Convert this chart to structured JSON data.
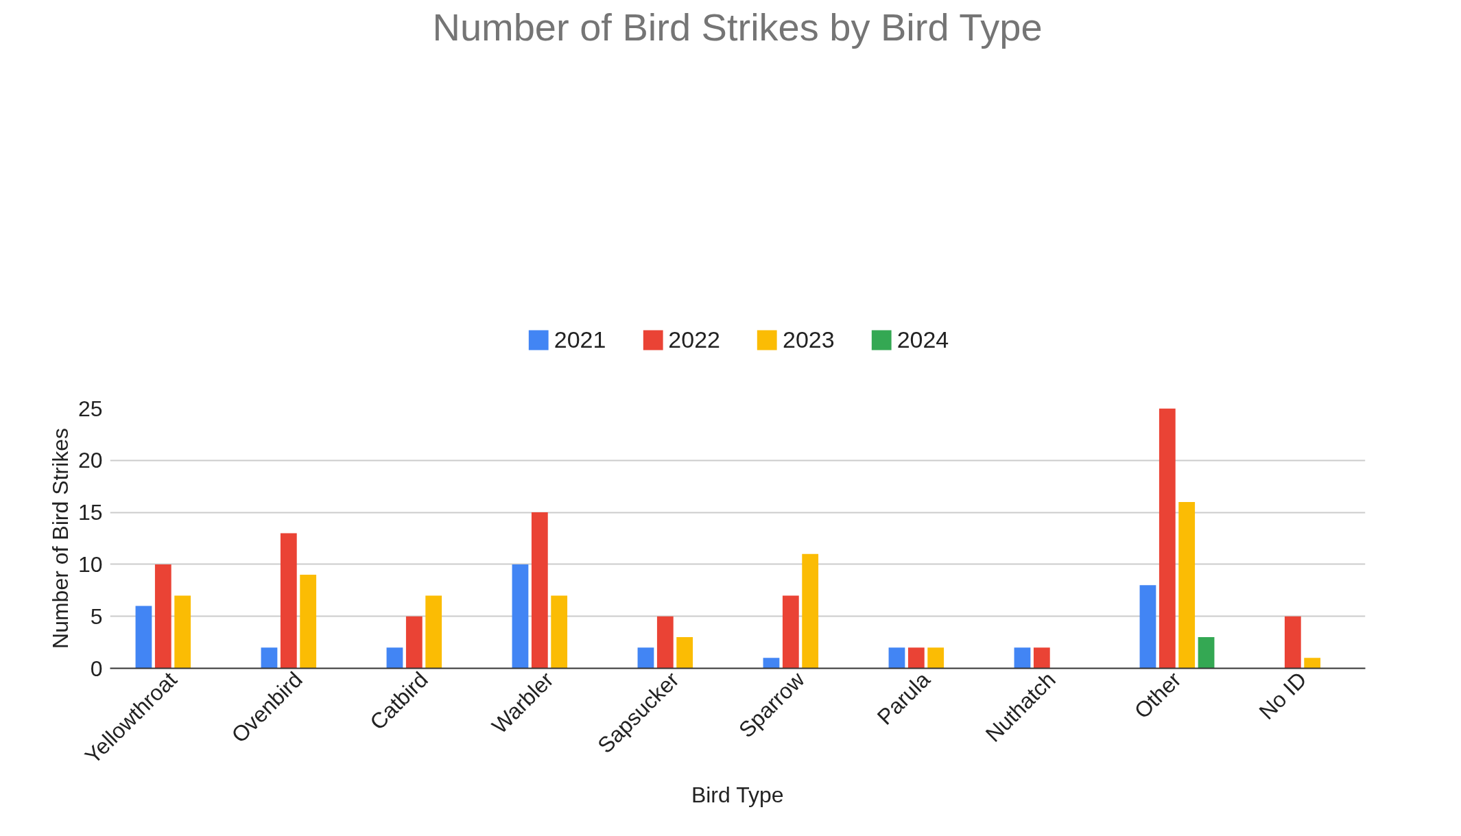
{
  "chart_data": {
    "type": "bar",
    "title": "Number of Bird Strikes by Bird Type",
    "xlabel": "Bird Type",
    "ylabel": "Number of Bird Strikes",
    "categories": [
      "Yellowthroat",
      "Ovenbird",
      "Catbird",
      "Warbler",
      "Sapsucker",
      "Sparrow",
      "Parula",
      "Nuthatch",
      "Other",
      "No ID"
    ],
    "series": [
      {
        "name": "2021",
        "color": "#4285f4",
        "values": [
          6,
          2,
          2,
          10,
          2,
          1,
          2,
          2,
          8,
          null
        ]
      },
      {
        "name": "2022",
        "color": "#ea4335",
        "values": [
          10,
          13,
          5,
          15,
          5,
          7,
          2,
          2,
          25,
          5
        ]
      },
      {
        "name": "2023",
        "color": "#fbbc04",
        "values": [
          7,
          9,
          7,
          7,
          3,
          11,
          2,
          null,
          16,
          1
        ]
      },
      {
        "name": "2024",
        "color": "#34a853",
        "values": [
          null,
          null,
          null,
          null,
          null,
          null,
          null,
          null,
          3,
          null
        ]
      }
    ],
    "ylim": [
      0,
      25
    ],
    "yticks": [
      0,
      5,
      10,
      15,
      20,
      25
    ],
    "grid": "y",
    "legend": "top"
  }
}
